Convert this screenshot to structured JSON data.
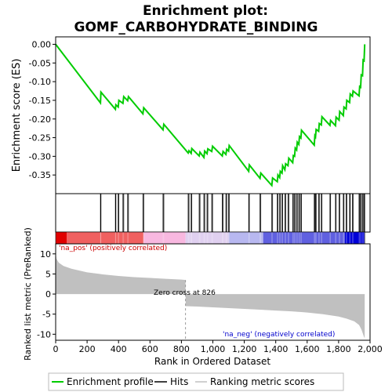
{
  "chart_data": {
    "title_line1": "Enrichment plot:",
    "title_line2": "GOMF_CARBOHYDRATE_BINDING",
    "panels": [
      {
        "type": "line",
        "name": "enrichment-profile",
        "ylabel": "Enrichment score (ES)",
        "ylim": [
          -0.4,
          0.02
        ],
        "yticks": [
          0.0,
          -0.05,
          -0.1,
          -0.15,
          -0.2,
          -0.25,
          -0.3,
          -0.35
        ],
        "ytick_labels": [
          "0.00",
          "-0.05",
          "-0.10",
          "-0.15",
          "-0.20",
          "-0.25",
          "-0.30",
          "-0.35"
        ],
        "color": "#00cc00",
        "points": [
          [
            0,
            0.0
          ],
          [
            285,
            -0.157
          ],
          [
            288,
            -0.128
          ],
          [
            380,
            -0.174
          ],
          [
            383,
            -0.162
          ],
          [
            398,
            -0.168
          ],
          [
            402,
            -0.15
          ],
          [
            428,
            -0.158
          ],
          [
            433,
            -0.14
          ],
          [
            458,
            -0.151
          ],
          [
            463,
            -0.14
          ],
          [
            555,
            -0.186
          ],
          [
            560,
            -0.17
          ],
          [
            683,
            -0.229
          ],
          [
            688,
            -0.214
          ],
          [
            843,
            -0.291
          ],
          [
            848,
            -0.285
          ],
          [
            862,
            -0.292
          ],
          [
            866,
            -0.279
          ],
          [
            913,
            -0.299
          ],
          [
            918,
            -0.289
          ],
          [
            943,
            -0.303
          ],
          [
            948,
            -0.286
          ],
          [
            963,
            -0.293
          ],
          [
            968,
            -0.28
          ],
          [
            993,
            -0.287
          ],
          [
            998,
            -0.273
          ],
          [
            1060,
            -0.299
          ],
          [
            1065,
            -0.287
          ],
          [
            1083,
            -0.295
          ],
          [
            1088,
            -0.281
          ],
          [
            1100,
            -0.286
          ],
          [
            1104,
            -0.271
          ],
          [
            1228,
            -0.34
          ],
          [
            1232,
            -0.323
          ],
          [
            1300,
            -0.359
          ],
          [
            1305,
            -0.345
          ],
          [
            1375,
            -0.378
          ],
          [
            1380,
            -0.358
          ],
          [
            1410,
            -0.368
          ],
          [
            1414,
            -0.35
          ],
          [
            1425,
            -0.357
          ],
          [
            1429,
            -0.34
          ],
          [
            1440,
            -0.345
          ],
          [
            1444,
            -0.325
          ],
          [
            1458,
            -0.336
          ],
          [
            1463,
            -0.32
          ],
          [
            1478,
            -0.325
          ],
          [
            1483,
            -0.305
          ],
          [
            1508,
            -0.317
          ],
          [
            1512,
            -0.298
          ],
          [
            1520,
            -0.3
          ],
          [
            1524,
            -0.278
          ],
          [
            1533,
            -0.283
          ],
          [
            1537,
            -0.262
          ],
          [
            1547,
            -0.268
          ],
          [
            1551,
            -0.247
          ],
          [
            1560,
            -0.251
          ],
          [
            1564,
            -0.23
          ],
          [
            1645,
            -0.27
          ],
          [
            1649,
            -0.245
          ],
          [
            1653,
            -0.248
          ],
          [
            1657,
            -0.228
          ],
          [
            1673,
            -0.233
          ],
          [
            1677,
            -0.212
          ],
          [
            1690,
            -0.216
          ],
          [
            1694,
            -0.194
          ],
          [
            1745,
            -0.217
          ],
          [
            1749,
            -0.204
          ],
          [
            1780,
            -0.218
          ],
          [
            1784,
            -0.195
          ],
          [
            1803,
            -0.203
          ],
          [
            1807,
            -0.18
          ],
          [
            1830,
            -0.191
          ],
          [
            1834,
            -0.168
          ],
          [
            1848,
            -0.173
          ],
          [
            1852,
            -0.15
          ],
          [
            1870,
            -0.156
          ],
          [
            1874,
            -0.133
          ],
          [
            1888,
            -0.139
          ],
          [
            1892,
            -0.125
          ],
          [
            1930,
            -0.138
          ],
          [
            1934,
            -0.113
          ],
          [
            1940,
            -0.115
          ],
          [
            1944,
            -0.082
          ],
          [
            1952,
            -0.084
          ],
          [
            1956,
            -0.042
          ],
          [
            1962,
            -0.044
          ],
          [
            1966,
            0.0
          ]
        ]
      },
      {
        "type": "hits",
        "name": "gene-set-hits",
        "positions": [
          285,
          288,
          380,
          383,
          398,
          402,
          428,
          433,
          458,
          463,
          555,
          560,
          683,
          688,
          843,
          848,
          862,
          866,
          913,
          918,
          943,
          948,
          963,
          968,
          993,
          998,
          1060,
          1065,
          1083,
          1088,
          1100,
          1104,
          1228,
          1232,
          1300,
          1305,
          1375,
          1380,
          1410,
          1414,
          1425,
          1429,
          1440,
          1444,
          1458,
          1463,
          1478,
          1483,
          1508,
          1512,
          1520,
          1524,
          1533,
          1537,
          1547,
          1551,
          1560,
          1564,
          1645,
          1649,
          1653,
          1657,
          1673,
          1677,
          1690,
          1694,
          1745,
          1749,
          1780,
          1784,
          1803,
          1807,
          1830,
          1834,
          1848,
          1852,
          1870,
          1874,
          1888,
          1892,
          1930,
          1934,
          1940,
          1944,
          1952,
          1956,
          1962,
          1966
        ]
      },
      {
        "type": "area",
        "name": "ranked-list-metric",
        "ylabel": "Ranked list metric (PreRanked)",
        "xlabel": "Rank in Ordered Dataset",
        "xlim": [
          0,
          2000
        ],
        "ylim": [
          -11.5,
          12.5
        ],
        "xticks": [
          0,
          200,
          400,
          600,
          800,
          1000,
          1200,
          1400,
          1600,
          1800,
          2000
        ],
        "xtick_labels": [
          "0",
          "200",
          "400",
          "600",
          "800",
          "1,000",
          "1,200",
          "1,400",
          "1,600",
          "1,800",
          "2,000"
        ],
        "yticks": [
          10,
          5,
          0,
          -5,
          -10
        ],
        "ytick_labels": [
          "10",
          "5",
          "0",
          "-5",
          "-10"
        ],
        "color": "#c0c0c0",
        "profile": [
          [
            0,
            10.2
          ],
          [
            5,
            8.8
          ],
          [
            20,
            7.8
          ],
          [
            50,
            7.0
          ],
          [
            100,
            6.3
          ],
          [
            200,
            5.4
          ],
          [
            300,
            4.9
          ],
          [
            400,
            4.5
          ],
          [
            500,
            4.2
          ],
          [
            600,
            4.0
          ],
          [
            700,
            3.8
          ],
          [
            800,
            3.6
          ],
          [
            826,
            3.5
          ],
          [
            827,
            -3.0
          ],
          [
            900,
            -3.1
          ],
          [
            1000,
            -3.3
          ],
          [
            1100,
            -3.5
          ],
          [
            1200,
            -3.7
          ],
          [
            1300,
            -3.9
          ],
          [
            1400,
            -4.1
          ],
          [
            1500,
            -4.3
          ],
          [
            1600,
            -4.6
          ],
          [
            1700,
            -5.0
          ],
          [
            1750,
            -5.3
          ],
          [
            1800,
            -5.6
          ],
          [
            1850,
            -6.1
          ],
          [
            1900,
            -6.8
          ],
          [
            1930,
            -7.7
          ],
          [
            1945,
            -8.8
          ],
          [
            1960,
            -10.5
          ],
          [
            1966,
            -11.0
          ]
        ]
      }
    ],
    "zero_cross_rank": 826,
    "total_ranks": 1966,
    "annotations": {
      "pos": "'na_pos' (positively correlated)",
      "neg": "'na_neg' (negatively correlated)",
      "zero": "Zero cross at 826"
    },
    "legend": [
      "Enrichment profile",
      "Hits",
      "Ranking metric scores"
    ],
    "colors": {
      "profile": "#00cc00",
      "hits": "#000000",
      "metric": "#c0c0c0",
      "pos_label": "#cc0000",
      "neg_label": "#0000cc",
      "zero_line": "#999999",
      "band": [
        "#e00000",
        "#f06060",
        "#f8b8e0",
        "#e0d0f0",
        "#b8b8f0",
        "#6060e0",
        "#0000d8"
      ]
    }
  }
}
